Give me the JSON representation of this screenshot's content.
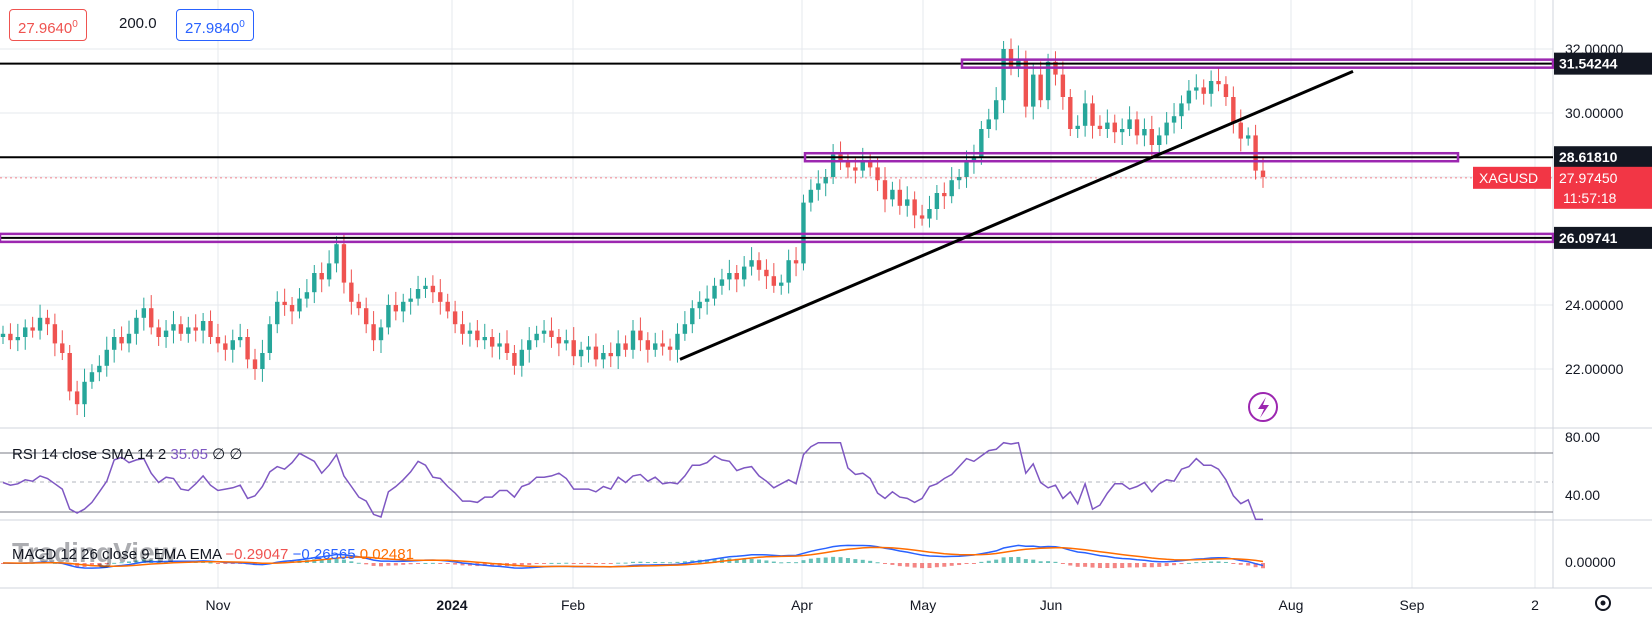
{
  "quote": {
    "bid": "27.9640",
    "bid_small": "0",
    "spread": "200.0",
    "ask": "27.9840",
    "ask_small": "0"
  },
  "symbol": "XAGUSD",
  "countdown": "11:57:18",
  "watermark": "TradingView",
  "colors": {
    "up": "#26a69a",
    "down": "#ef5350",
    "level": "#9c27b0",
    "rsi": "#7e57c2",
    "macd": "#2962ff",
    "signal": "#ff6d00",
    "price_tag": "#f23645",
    "trend": "#000000"
  },
  "rsi_legend": {
    "name": "RSI 14 close SMA 14 2",
    "value": "35.05",
    "extra1": "∅",
    "extra2": "∅"
  },
  "macd_legend": {
    "name": "MACD 12 26 close 9 EMA EMA",
    "macd": "−0.29047",
    "signal": "−0.26565",
    "hist": "0.02481"
  },
  "icon": "lightning-icon",
  "settings_icon": "gear-icon",
  "chart_data": {
    "type": "candlestick",
    "symbol": "XAGUSD",
    "x_ticks": [
      "Nov",
      "2024",
      "Feb",
      "Apr",
      "May",
      "Jun",
      "Aug",
      "Sep",
      "2"
    ],
    "y_ticks": [
      "32.00000",
      "30.00000",
      "24.00000",
      "22.00000"
    ],
    "ylim": [
      20.5,
      33.2
    ],
    "last_price": 27.9745,
    "levels": [
      {
        "price": 31.54244,
        "label": "31.54244"
      },
      {
        "price": 28.6181,
        "label": "28.61810"
      },
      {
        "price": 26.09741,
        "label": "26.09741"
      }
    ],
    "trendline": {
      "from": {
        "date": "2024-02-28",
        "price": 22.3
      },
      "to": {
        "date": "2024-08-22",
        "price": 31.3
      }
    },
    "closes_approx": [
      23.1,
      22.9,
      23.0,
      23.3,
      23.2,
      23.6,
      23.4,
      22.8,
      22.5,
      21.3,
      20.9,
      21.6,
      21.9,
      22.1,
      22.6,
      23.0,
      22.8,
      23.1,
      23.6,
      23.9,
      23.3,
      23.0,
      23.2,
      23.4,
      23.1,
      23.3,
      23.2,
      23.5,
      23.0,
      22.8,
      22.6,
      22.9,
      23.0,
      22.3,
      22.0,
      22.5,
      23.4,
      24.1,
      24.0,
      23.8,
      24.2,
      24.4,
      25.0,
      24.8,
      25.3,
      25.9,
      24.7,
      24.1,
      23.9,
      23.4,
      22.9,
      23.3,
      24.0,
      23.8,
      24.1,
      24.2,
      24.5,
      24.6,
      24.4,
      24.1,
      23.8,
      23.4,
      23.1,
      23.2,
      22.9,
      23.0,
      22.7,
      22.8,
      22.5,
      22.1,
      22.6,
      22.9,
      23.1,
      23.2,
      23.0,
      22.8,
      22.9,
      22.4,
      22.6,
      22.7,
      22.3,
      22.5,
      22.4,
      22.8,
      22.6,
      23.2,
      22.9,
      22.6,
      22.8,
      22.7,
      22.6,
      23.1,
      23.4,
      23.9,
      24.1,
      24.2,
      24.6,
      24.8,
      25.0,
      24.8,
      25.2,
      25.4,
      25.1,
      24.9,
      24.6,
      24.7,
      25.4,
      25.3,
      27.2,
      27.6,
      27.8,
      28.0,
      28.7,
      28.5,
      28.3,
      28.2,
      28.5,
      28.3,
      27.9,
      27.3,
      27.6,
      27.1,
      27.3,
      26.8,
      26.7,
      27.0,
      27.5,
      27.4,
      27.9,
      28.0,
      28.5,
      28.6,
      29.5,
      29.8,
      30.4,
      32.0,
      31.4,
      31.7,
      30.2,
      31.2,
      30.4,
      31.6,
      31.2,
      30.5,
      29.5,
      29.6,
      30.3,
      29.6,
      29.5,
      29.7,
      29.4,
      29.5,
      29.8,
      29.3,
      29.5,
      29.0,
      29.3,
      29.7,
      29.9,
      30.3,
      30.7,
      30.8,
      30.6,
      31.0,
      30.9,
      30.5,
      29.7,
      29.2,
      29.3,
      28.2,
      28.0
    ]
  }
}
